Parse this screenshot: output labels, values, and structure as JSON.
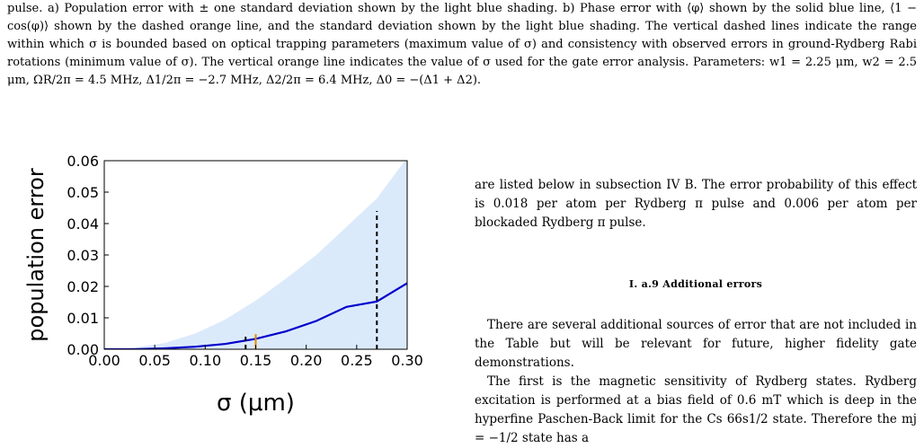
{
  "caption": {
    "text": "pulse. a) Population error with ± one standard deviation shown by the light blue shading. b) Phase error with ⟨φ⟩ shown by the solid blue line, ⟨1 − cos(φ)⟩ shown by the dashed orange line, and the standard deviation shown by the light blue shading. The vertical dashed lines indicate the range within which σ is bounded based on optical trapping parameters (maximum value of σ) and consistency with observed errors in ground-Rydberg Rabi rotations (minimum value of σ). The vertical orange line indicates the value of σ used for the gate error analysis. Parameters: w1 = 2.25 μm, w2 = 2.5 μm, ΩR/2π = 4.5 MHz, Δ1/2π = −2.7 MHz, Δ2/2π = 6.4 MHz, Δ0 = −(Δ1 + Δ2)."
  },
  "chart_data": {
    "type": "line",
    "xlabel": "σ (μm)",
    "ylabel": "population error",
    "xlim": [
      0.0,
      0.3
    ],
    "ylim": [
      0.0,
      0.06
    ],
    "x_ticks": [
      "0.00",
      "0.05",
      "0.10",
      "0.15",
      "0.20",
      "0.25",
      "0.30"
    ],
    "y_ticks": [
      "0.00",
      "0.01",
      "0.02",
      "0.03",
      "0.04",
      "0.05",
      "0.06"
    ],
    "series": [
      {
        "x": [
          0.0,
          0.03,
          0.06,
          0.09,
          0.12,
          0.15,
          0.18,
          0.21,
          0.24,
          0.27,
          0.3
        ],
        "y": [
          0.0,
          0.0,
          0.0003,
          0.0008,
          0.0017,
          0.0033,
          0.0057,
          0.009,
          0.0135,
          0.0152,
          0.021
        ],
        "color": "#0000cc"
      }
    ],
    "band": {
      "x": [
        0.0,
        0.03,
        0.06,
        0.09,
        0.12,
        0.15,
        0.18,
        0.21,
        0.24,
        0.27,
        0.3
      ],
      "upper": [
        0.0,
        0.0005,
        0.002,
        0.005,
        0.0095,
        0.0155,
        0.0225,
        0.03,
        0.039,
        0.048,
        0.061
      ],
      "lower": [
        0,
        0,
        0,
        0,
        0,
        0,
        0,
        0,
        0,
        0,
        0
      ],
      "color": "#dbeafb"
    },
    "vlines": [
      {
        "x": 0.14,
        "ymax": 0.0045,
        "style": "dashed",
        "color": "#000000"
      },
      {
        "x": 0.27,
        "ymax": 0.044,
        "style": "dashed",
        "color": "#000000"
      },
      {
        "x": 0.15,
        "ymax": 0.0048,
        "style": "solid",
        "color": "#e08a00"
      }
    ],
    "grid": false
  },
  "body": {
    "para1": "are listed below in subsection IV B. The error probability of this effect is 0.018 per atom per Rydberg π pulse and 0.006 per atom per blockaded Rydberg π pulse.",
    "section_title": "I.    a.9 Additional errors",
    "para2": "There are several additional sources of error that are not included in the Table but will be relevant for future, higher fidelity gate demonstrations.",
    "para3": "The first is the magnetic sensitivity of Rydberg states. Rydberg excitation is performed at a bias field of 0.6 mT which is deep in the hyperfine Paschen-Back limit for the Cs 66s1/2 state. Therefore the mj = −1/2 state has a"
  }
}
